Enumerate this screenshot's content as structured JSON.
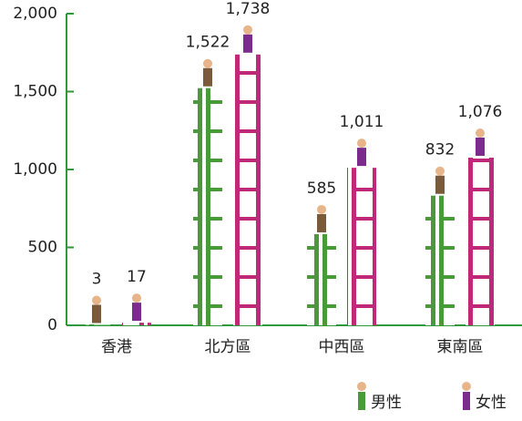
{
  "chart_data": {
    "type": "bar",
    "categories": [
      "香港",
      "北方區",
      "中西區",
      "東南區"
    ],
    "series": [
      {
        "name": "男性",
        "color": "#4a9a3c",
        "values": [
          3,
          1522,
          585,
          832
        ],
        "value_labels": [
          "3",
          "1,522",
          "585",
          "832"
        ]
      },
      {
        "name": "女性",
        "color": "#c0297a",
        "values": [
          17,
          1738,
          1011,
          1076
        ],
        "value_labels": [
          "17",
          "1,738",
          "1,011",
          "1,076"
        ]
      }
    ],
    "ylim": [
      0,
      2000
    ],
    "yticks": [
      0,
      500,
      {
        "value": 1000,
        "label": "1,000"
      },
      {
        "value": 1500,
        "label": "1,500"
      },
      {
        "value": 2000,
        "label": "2,000"
      }
    ],
    "legend": "bottom-right"
  }
}
